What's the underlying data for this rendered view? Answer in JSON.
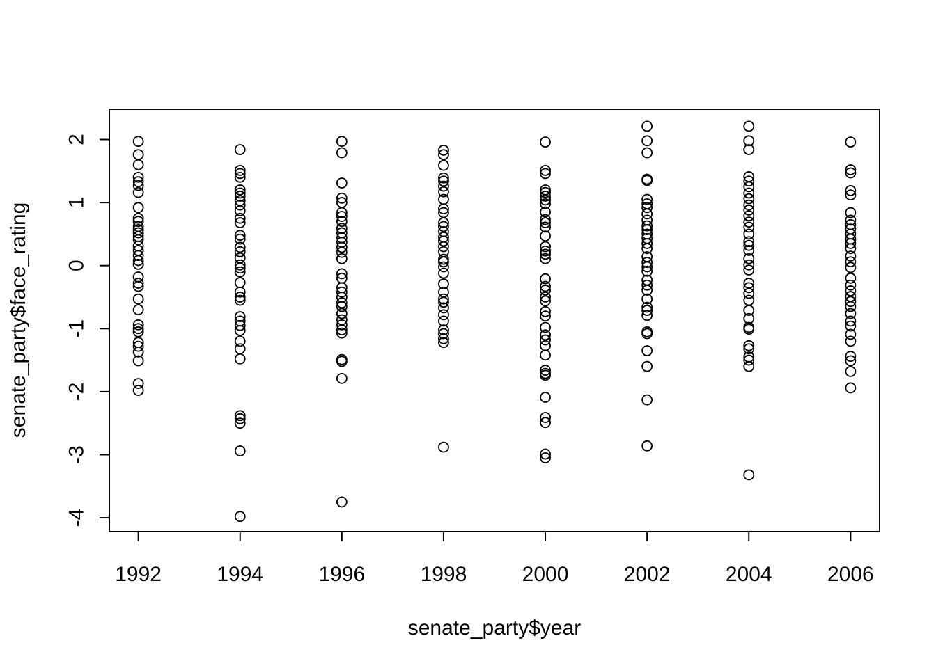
{
  "chart_data": {
    "type": "scatter",
    "title": "",
    "xlabel": "senate_party$year",
    "ylabel": "senate_party$face_rating",
    "xlim": [
      1991.43,
      2006.57
    ],
    "ylim": [
      -4.22,
      2.48
    ],
    "x_ticks": [
      1992,
      1994,
      1996,
      1998,
      2000,
      2002,
      2004,
      2006
    ],
    "x_tick_labels": [
      "1992",
      "1994",
      "1996",
      "1998",
      "2000",
      "2002",
      "2004",
      "2006"
    ],
    "y_ticks": [
      -4,
      -3,
      -2,
      -1,
      0,
      1,
      2
    ],
    "y_tick_labels": [
      "-4",
      "-3",
      "-2",
      "-1",
      "0",
      "1",
      "2"
    ],
    "grid": false,
    "marker": "open-circle",
    "marker_color": "#000000",
    "series": [
      {
        "points": [
          [
            1992,
            1.97
          ],
          [
            1992,
            1.76
          ],
          [
            1992,
            1.6
          ],
          [
            1992,
            1.4
          ],
          [
            1992,
            1.33
          ],
          [
            1992,
            1.27
          ],
          [
            1992,
            1.16
          ],
          [
            1992,
            0.92
          ],
          [
            1992,
            0.75
          ],
          [
            1992,
            0.7
          ],
          [
            1992,
            0.62
          ],
          [
            1992,
            0.57
          ],
          [
            1992,
            0.52
          ],
          [
            1992,
            0.46
          ],
          [
            1992,
            0.41
          ],
          [
            1992,
            0.31
          ],
          [
            1992,
            0.24
          ],
          [
            1992,
            0.16
          ],
          [
            1992,
            0.08
          ],
          [
            1992,
            0.02
          ],
          [
            1992,
            -0.18
          ],
          [
            1992,
            -0.28
          ],
          [
            1992,
            -0.33
          ],
          [
            1992,
            -0.53
          ],
          [
            1992,
            -0.7
          ],
          [
            1992,
            -0.94
          ],
          [
            1992,
            -1.0
          ],
          [
            1992,
            -1.05
          ],
          [
            1992,
            -1.22
          ],
          [
            1992,
            -1.28
          ],
          [
            1992,
            -1.37
          ],
          [
            1992,
            -1.51
          ],
          [
            1992,
            -1.87
          ],
          [
            1992,
            -1.98
          ],
          [
            1994,
            1.84
          ],
          [
            1994,
            1.51
          ],
          [
            1994,
            1.46
          ],
          [
            1994,
            1.4
          ],
          [
            1994,
            1.2
          ],
          [
            1994,
            1.15
          ],
          [
            1994,
            1.1
          ],
          [
            1994,
            1.03
          ],
          [
            1994,
            0.96
          ],
          [
            1994,
            0.87
          ],
          [
            1994,
            0.75
          ],
          [
            1994,
            0.68
          ],
          [
            1994,
            0.48
          ],
          [
            1994,
            0.42
          ],
          [
            1994,
            0.29
          ],
          [
            1994,
            0.22
          ],
          [
            1994,
            0.12
          ],
          [
            1994,
            0.01
          ],
          [
            1994,
            -0.04
          ],
          [
            1994,
            -0.1
          ],
          [
            1994,
            -0.27
          ],
          [
            1994,
            -0.42
          ],
          [
            1994,
            -0.5
          ],
          [
            1994,
            -0.55
          ],
          [
            1994,
            -0.81
          ],
          [
            1994,
            -0.88
          ],
          [
            1994,
            -0.95
          ],
          [
            1994,
            -1.03
          ],
          [
            1994,
            -1.2
          ],
          [
            1994,
            -1.32
          ],
          [
            1994,
            -1.48
          ],
          [
            1994,
            -2.38
          ],
          [
            1994,
            -2.43
          ],
          [
            1994,
            -2.5
          ],
          [
            1994,
            -2.94
          ],
          [
            1994,
            -3.98
          ],
          [
            1996,
            1.97
          ],
          [
            1996,
            1.79
          ],
          [
            1996,
            1.31
          ],
          [
            1996,
            1.07
          ],
          [
            1996,
            1.0
          ],
          [
            1996,
            0.84
          ],
          [
            1996,
            0.78
          ],
          [
            1996,
            0.7
          ],
          [
            1996,
            0.59
          ],
          [
            1996,
            0.52
          ],
          [
            1996,
            0.44
          ],
          [
            1996,
            0.37
          ],
          [
            1996,
            0.29
          ],
          [
            1996,
            0.21
          ],
          [
            1996,
            0.11
          ],
          [
            1996,
            -0.13
          ],
          [
            1996,
            -0.2
          ],
          [
            1996,
            -0.35
          ],
          [
            1996,
            -0.42
          ],
          [
            1996,
            -0.5
          ],
          [
            1996,
            -0.59
          ],
          [
            1996,
            -0.65
          ],
          [
            1996,
            -0.76
          ],
          [
            1996,
            -0.86
          ],
          [
            1996,
            -0.94
          ],
          [
            1996,
            -1.02
          ],
          [
            1996,
            -1.07
          ],
          [
            1996,
            -1.49
          ],
          [
            1996,
            -1.52
          ],
          [
            1996,
            -1.79
          ],
          [
            1996,
            -3.75
          ],
          [
            1998,
            1.83
          ],
          [
            1998,
            1.76
          ],
          [
            1998,
            1.59
          ],
          [
            1998,
            1.39
          ],
          [
            1998,
            1.34
          ],
          [
            1998,
            1.26
          ],
          [
            1998,
            1.17
          ],
          [
            1998,
            1.05
          ],
          [
            1998,
            0.9
          ],
          [
            1998,
            0.84
          ],
          [
            1998,
            0.68
          ],
          [
            1998,
            0.62
          ],
          [
            1998,
            0.54
          ],
          [
            1998,
            0.45
          ],
          [
            1998,
            0.39
          ],
          [
            1998,
            0.3
          ],
          [
            1998,
            0.22
          ],
          [
            1998,
            0.1
          ],
          [
            1998,
            0.06
          ],
          [
            1998,
            -0.02
          ],
          [
            1998,
            -0.12
          ],
          [
            1998,
            -0.29
          ],
          [
            1998,
            -0.42
          ],
          [
            1998,
            -0.53
          ],
          [
            1998,
            -0.58
          ],
          [
            1998,
            -0.67
          ],
          [
            1998,
            -0.78
          ],
          [
            1998,
            -0.88
          ],
          [
            1998,
            -1.02
          ],
          [
            1998,
            -1.08
          ],
          [
            1998,
            -1.16
          ],
          [
            1998,
            -1.22
          ],
          [
            1998,
            -2.88
          ],
          [
            2000,
            1.96
          ],
          [
            2000,
            1.51
          ],
          [
            2000,
            1.46
          ],
          [
            2000,
            1.2
          ],
          [
            2000,
            1.16
          ],
          [
            2000,
            1.1
          ],
          [
            2000,
            1.04
          ],
          [
            2000,
            0.98
          ],
          [
            2000,
            0.85
          ],
          [
            2000,
            0.73
          ],
          [
            2000,
            0.68
          ],
          [
            2000,
            0.61
          ],
          [
            2000,
            0.47
          ],
          [
            2000,
            0.3
          ],
          [
            2000,
            0.23
          ],
          [
            2000,
            0.18
          ],
          [
            2000,
            0.11
          ],
          [
            2000,
            -0.21
          ],
          [
            2000,
            -0.33
          ],
          [
            2000,
            -0.39
          ],
          [
            2000,
            -0.5
          ],
          [
            2000,
            -0.56
          ],
          [
            2000,
            -0.73
          ],
          [
            2000,
            -0.8
          ],
          [
            2000,
            -0.98
          ],
          [
            2000,
            -1.1
          ],
          [
            2000,
            -1.18
          ],
          [
            2000,
            -1.27
          ],
          [
            2000,
            -1.42
          ],
          [
            2000,
            -1.66
          ],
          [
            2000,
            -1.71
          ],
          [
            2000,
            -1.74
          ],
          [
            2000,
            -2.09
          ],
          [
            2000,
            -2.41
          ],
          [
            2000,
            -2.49
          ],
          [
            2000,
            -2.99
          ],
          [
            2000,
            -3.05
          ],
          [
            2002,
            2.21
          ],
          [
            2002,
            1.98
          ],
          [
            2002,
            1.79
          ],
          [
            2002,
            1.37
          ],
          [
            2002,
            1.35
          ],
          [
            2002,
            1.05
          ],
          [
            2002,
            0.98
          ],
          [
            2002,
            0.92
          ],
          [
            2002,
            0.82
          ],
          [
            2002,
            0.72
          ],
          [
            2002,
            0.63
          ],
          [
            2002,
            0.57
          ],
          [
            2002,
            0.5
          ],
          [
            2002,
            0.43
          ],
          [
            2002,
            0.35
          ],
          [
            2002,
            0.27
          ],
          [
            2002,
            0.14
          ],
          [
            2002,
            0.05
          ],
          [
            2002,
            -0.02
          ],
          [
            2002,
            -0.09
          ],
          [
            2002,
            -0.23
          ],
          [
            2002,
            -0.31
          ],
          [
            2002,
            -0.39
          ],
          [
            2002,
            -0.53
          ],
          [
            2002,
            -0.66
          ],
          [
            2002,
            -0.71
          ],
          [
            2002,
            -0.79
          ],
          [
            2002,
            -1.05
          ],
          [
            2002,
            -1.08
          ],
          [
            2002,
            -1.35
          ],
          [
            2002,
            -1.6
          ],
          [
            2002,
            -2.13
          ],
          [
            2002,
            -2.86
          ],
          [
            2004,
            2.21
          ],
          [
            2004,
            1.98
          ],
          [
            2004,
            1.84
          ],
          [
            2004,
            1.41
          ],
          [
            2004,
            1.34
          ],
          [
            2004,
            1.25
          ],
          [
            2004,
            1.15
          ],
          [
            2004,
            1.06
          ],
          [
            2004,
            0.96
          ],
          [
            2004,
            0.88
          ],
          [
            2004,
            0.79
          ],
          [
            2004,
            0.69
          ],
          [
            2004,
            0.61
          ],
          [
            2004,
            0.5
          ],
          [
            2004,
            0.38
          ],
          [
            2004,
            0.32
          ],
          [
            2004,
            0.24
          ],
          [
            2004,
            0.11
          ],
          [
            2004,
            0.01
          ],
          [
            2004,
            -0.07
          ],
          [
            2004,
            -0.28
          ],
          [
            2004,
            -0.35
          ],
          [
            2004,
            -0.44
          ],
          [
            2004,
            -0.55
          ],
          [
            2004,
            -0.71
          ],
          [
            2004,
            -0.84
          ],
          [
            2004,
            -0.98
          ],
          [
            2004,
            -1.01
          ],
          [
            2004,
            -1.27
          ],
          [
            2004,
            -1.32
          ],
          [
            2004,
            -1.45
          ],
          [
            2004,
            -1.5
          ],
          [
            2004,
            -1.6
          ],
          [
            2004,
            -3.32
          ],
          [
            2006,
            1.96
          ],
          [
            2006,
            1.52
          ],
          [
            2006,
            1.47
          ],
          [
            2006,
            1.19
          ],
          [
            2006,
            1.12
          ],
          [
            2006,
            0.84
          ],
          [
            2006,
            0.72
          ],
          [
            2006,
            0.65
          ],
          [
            2006,
            0.58
          ],
          [
            2006,
            0.5
          ],
          [
            2006,
            0.42
          ],
          [
            2006,
            0.35
          ],
          [
            2006,
            0.27
          ],
          [
            2006,
            0.15
          ],
          [
            2006,
            0.06
          ],
          [
            2006,
            -0.03
          ],
          [
            2006,
            -0.2
          ],
          [
            2006,
            -0.31
          ],
          [
            2006,
            -0.4
          ],
          [
            2006,
            -0.49
          ],
          [
            2006,
            -0.57
          ],
          [
            2006,
            -0.65
          ],
          [
            2006,
            -0.76
          ],
          [
            2006,
            -0.88
          ],
          [
            2006,
            -0.96
          ],
          [
            2006,
            -1.09
          ],
          [
            2006,
            -1.2
          ],
          [
            2006,
            -1.44
          ],
          [
            2006,
            -1.51
          ],
          [
            2006,
            -1.68
          ],
          [
            2006,
            -1.94
          ]
        ]
      }
    ]
  }
}
